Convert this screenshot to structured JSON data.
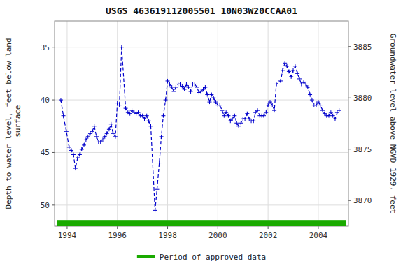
{
  "chart_data": {
    "type": "line",
    "title": "USGS 463619112005501 10N03W20CCAA01",
    "ylabel": "Depth to water level, feet below land\n surface",
    "y2label": "Groundwater level above NGVD 1929, feet",
    "xlim": [
      1993.5,
      2005.2
    ],
    "xticks": [
      1994,
      1996,
      1998,
      2000,
      2002,
      2004
    ],
    "ylim": [
      52.0,
      32.5
    ],
    "yticks": [
      35,
      40,
      45,
      50
    ],
    "y2lim": [
      3867.5,
      3887.5
    ],
    "y2ticks": [
      3870,
      3875,
      3880,
      3885
    ],
    "grid": true,
    "legend": "bottom",
    "color": "#0000CC",
    "marker": "plus",
    "line_style": "dashed",
    "x": [
      1993.75,
      1993.85,
      1993.97,
      1994.08,
      1994.17,
      1994.25,
      1994.33,
      1994.42,
      1994.5,
      1994.58,
      1994.67,
      1994.75,
      1994.83,
      1994.92,
      1995.0,
      1995.08,
      1995.17,
      1995.25,
      1995.33,
      1995.42,
      1995.5,
      1995.58,
      1995.67,
      1995.75,
      1995.83,
      1995.92,
      1996.0,
      1996.08,
      1996.17,
      1996.33,
      1996.42,
      1996.5,
      1996.58,
      1996.67,
      1996.75,
      1996.83,
      1996.92,
      1997.0,
      1997.08,
      1997.17,
      1997.25,
      1997.33,
      1997.5,
      1997.58,
      1997.67,
      1997.75,
      1997.83,
      1997.92,
      1998.0,
      1998.08,
      1998.17,
      1998.25,
      1998.33,
      1998.42,
      1998.5,
      1998.58,
      1998.67,
      1998.75,
      1998.83,
      1998.92,
      1999.0,
      1999.08,
      1999.17,
      1999.25,
      1999.33,
      1999.42,
      1999.5,
      1999.58,
      1999.67,
      1999.75,
      1999.83,
      1999.92,
      2000.0,
      2000.08,
      2000.17,
      2000.25,
      2000.33,
      2000.42,
      2000.5,
      2000.58,
      2000.67,
      2000.75,
      2000.83,
      2000.92,
      2001.0,
      2001.08,
      2001.17,
      2001.25,
      2001.33,
      2001.42,
      2001.5,
      2001.58,
      2001.67,
      2001.75,
      2001.83,
      2001.92,
      2002.0,
      2002.08,
      2002.17,
      2002.25,
      2002.33,
      2002.5,
      2002.58,
      2002.67,
      2002.75,
      2002.83,
      2002.92,
      2003.0,
      2003.08,
      2003.17,
      2003.25,
      2003.33,
      2003.42,
      2003.5,
      2003.58,
      2003.67,
      2003.75,
      2003.83,
      2003.92,
      2004.0,
      2004.08,
      2004.17,
      2004.25,
      2004.33,
      2004.42,
      2004.5,
      2004.58,
      2004.67,
      2004.75,
      2004.83
    ],
    "values": [
      40.0,
      41.5,
      43.0,
      44.5,
      44.8,
      45.2,
      46.5,
      45.5,
      45.2,
      44.7,
      44.3,
      43.8,
      43.5,
      43.2,
      43.0,
      42.5,
      43.5,
      44.0,
      44.0,
      43.8,
      43.5,
      43.2,
      42.8,
      42.3,
      43.2,
      43.5,
      40.3,
      40.5,
      35.0,
      40.8,
      41.2,
      41.3,
      41.0,
      41.2,
      41.3,
      41.2,
      41.5,
      41.5,
      41.8,
      41.5,
      42.0,
      42.5,
      50.5,
      48.5,
      46.0,
      43.5,
      41.5,
      40.0,
      38.2,
      38.5,
      38.8,
      39.2,
      38.8,
      38.5,
      38.5,
      38.7,
      39.0,
      38.5,
      38.8,
      39.2,
      38.5,
      38.5,
      38.8,
      39.3,
      39.2,
      39.0,
      38.8,
      39.5,
      40.2,
      39.5,
      39.8,
      40.2,
      40.5,
      40.5,
      41.0,
      41.5,
      41.2,
      41.5,
      42.0,
      41.8,
      41.5,
      42.2,
      42.5,
      42.2,
      41.8,
      41.8,
      41.3,
      41.8,
      42.0,
      42.0,
      41.2,
      41.0,
      41.5,
      41.5,
      41.5,
      41.2,
      40.5,
      40.2,
      40.5,
      41.0,
      38.5,
      38.2,
      37.2,
      36.5,
      36.8,
      37.3,
      37.8,
      37.2,
      36.8,
      37.5,
      38.0,
      38.5,
      38.3,
      38.5,
      38.8,
      39.5,
      40.0,
      40.5,
      40.5,
      40.2,
      40.5,
      41.0,
      41.3,
      41.5,
      41.5,
      41.2,
      41.5,
      41.8,
      41.2,
      41.0
    ],
    "approved_period": {
      "name": "Period of approved data",
      "color": "#1aaa00",
      "start": 1993.6,
      "end": 2005.1
    }
  }
}
